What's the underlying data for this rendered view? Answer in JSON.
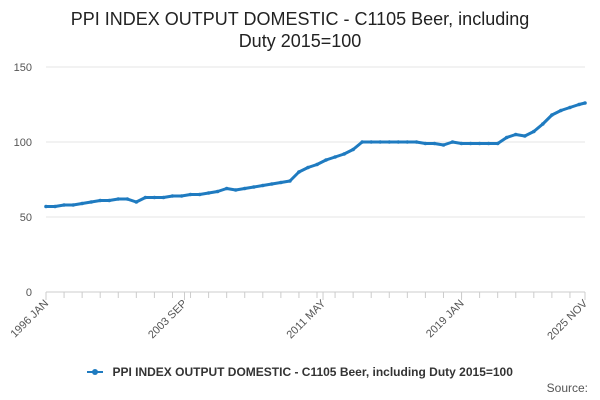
{
  "title_line1": "PPI INDEX OUTPUT DOMESTIC - C1105 Beer, including",
  "title_line2": "Duty 2015=100",
  "legend_label": "PPI INDEX OUTPUT DOMESTIC - C1105 Beer, including Duty 2015=100",
  "source_label": "Source:",
  "series_color": "#1f7bc0",
  "chart_data": {
    "type": "line",
    "title": "PPI INDEX OUTPUT DOMESTIC - C1105 Beer, including Duty 2015=100",
    "x_tick_labels": [
      "1996 JAN",
      "2003 SEP",
      "2011 MAY",
      "2019 JAN",
      "2025 NOV"
    ],
    "y_tick_labels": [
      "0",
      "50",
      "100",
      "150"
    ],
    "ylim": [
      0,
      150
    ],
    "xlim": [
      "1996 JAN",
      "2025 NOV"
    ],
    "grid": "horizontal",
    "legend_position": "bottom",
    "series": [
      {
        "name": "PPI INDEX OUTPUT DOMESTIC - C1105 Beer, including Duty 2015=100",
        "x": [
          "1996 JAN",
          "1996 JUL",
          "1997 JAN",
          "1997 JUL",
          "1998 JAN",
          "1998 JUL",
          "1999 JAN",
          "1999 JUL",
          "2000 JAN",
          "2000 JUL",
          "2001 JAN",
          "2001 JUL",
          "2002 JAN",
          "2002 JUL",
          "2003 JAN",
          "2003 JUL",
          "2004 JAN",
          "2004 JUL",
          "2005 JAN",
          "2005 JUL",
          "2006 JAN",
          "2006 JUL",
          "2007 JAN",
          "2007 JUL",
          "2008 JAN",
          "2008 JUL",
          "2009 JAN",
          "2009 JUL",
          "2010 JAN",
          "2010 JUL",
          "2011 JAN",
          "2011 JUL",
          "2012 JAN",
          "2012 JUL",
          "2013 JAN",
          "2013 JUL",
          "2014 JAN",
          "2014 JUL",
          "2015 JAN",
          "2015 JUL",
          "2016 JAN",
          "2016 JUL",
          "2017 JAN",
          "2017 JUL",
          "2018 JAN",
          "2018 JUL",
          "2019 JAN",
          "2019 JUL",
          "2020 JAN",
          "2020 JUL",
          "2021 JAN",
          "2021 JUL",
          "2022 JAN",
          "2022 JUL",
          "2023 JAN",
          "2023 JUL",
          "2024 JAN",
          "2024 JUL",
          "2025 JAN",
          "2025 JUL",
          "2025 NOV"
        ],
        "values": [
          57,
          57,
          58,
          58,
          59,
          60,
          61,
          61,
          62,
          62,
          60,
          63,
          63,
          63,
          64,
          64,
          65,
          65,
          66,
          67,
          69,
          68,
          69,
          70,
          71,
          72,
          73,
          74,
          80,
          83,
          85,
          88,
          90,
          92,
          95,
          100,
          100,
          100,
          100,
          100,
          100,
          100,
          99,
          99,
          98,
          100,
          99,
          99,
          99,
          99,
          99,
          103,
          105,
          104,
          107,
          112,
          118,
          121,
          123,
          125,
          126
        ]
      }
    ]
  }
}
